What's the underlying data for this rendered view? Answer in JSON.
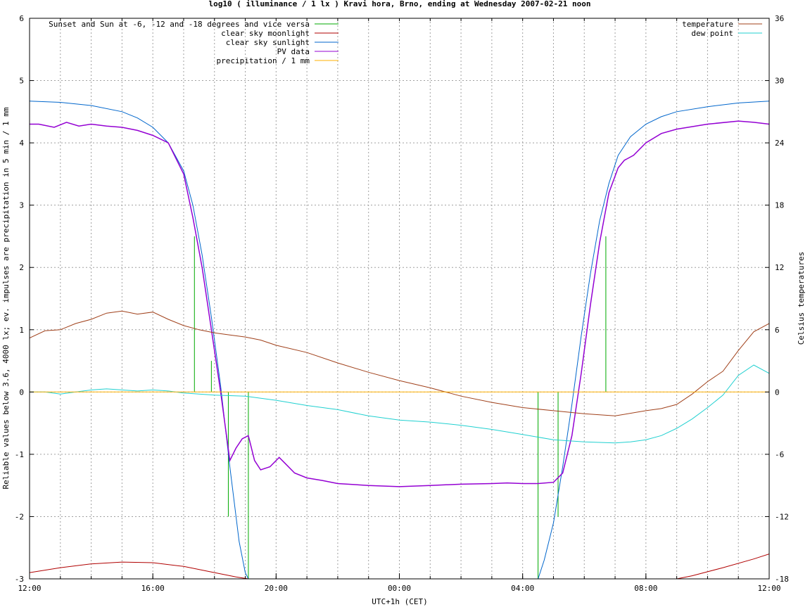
{
  "chart_data": {
    "type": "line",
    "title": "log10 ( illuminance / 1 lx ) Kravi hora, Brno, ending at Wednesday 2007-02-21 noon",
    "xlabel": "UTC+1h (CET)",
    "ylabel": "Reliable values below 3.6, 4000 lx; ev. impulses are precipitation in 5 min / 1 mm",
    "y2label": "Celsius temperatures",
    "xlim": [
      12,
      36
    ],
    "ylim": [
      -3,
      6
    ],
    "y2lim": [
      -18,
      36
    ],
    "x_ticks": [
      {
        "x": 12,
        "label": "12:00"
      },
      {
        "x": 16,
        "label": "16:00"
      },
      {
        "x": 20,
        "label": "20:00"
      },
      {
        "x": 24,
        "label": "00:00"
      },
      {
        "x": 28,
        "label": "04:00"
      },
      {
        "x": 32,
        "label": "08:00"
      },
      {
        "x": 36,
        "label": "12:00"
      }
    ],
    "y_ticks": [
      -3,
      -2,
      -1,
      0,
      1,
      2,
      3,
      4,
      5,
      6
    ],
    "y2_ticks": [
      -18,
      -12,
      -6,
      0,
      6,
      12,
      18,
      24,
      30,
      36
    ],
    "grid": true,
    "legend_left": [
      {
        "name": "Sunset and Sun at -6, -12 and -18 degrees and vice versa",
        "color": "#00aa00"
      },
      {
        "name": "clear sky moonlight",
        "color": "#b00000"
      },
      {
        "name": "clear sky sunlight",
        "color": "#0066cc"
      },
      {
        "name": "PV data",
        "color": "#9400d3"
      },
      {
        "name": "precipitation / 1 mm",
        "color": "#ffb000"
      }
    ],
    "legend_right": [
      {
        "name": "temperature",
        "color": "#a0401a"
      },
      {
        "name": "dew point",
        "color": "#20d0d0"
      }
    ],
    "sun_event_impulses": [
      {
        "x": 17.35,
        "y": 2.5
      },
      {
        "x": 17.9,
        "y": 0.5
      },
      {
        "x": 18.45,
        "y": -2.0
      },
      {
        "x": 19.1,
        "y": -3.0
      },
      {
        "x": 28.5,
        "y": -3.0
      },
      {
        "x": 29.15,
        "y": -2.0
      },
      {
        "x": 29.7,
        "y": 0.0
      },
      {
        "x": 30.7,
        "y": 2.5
      }
    ],
    "series": [
      {
        "name": "clear sky sunlight",
        "axis": "left",
        "x": [
          12,
          13,
          14,
          15,
          15.5,
          16,
          16.5,
          17,
          17.3,
          17.6,
          17.9,
          18.2,
          18.5,
          18.8,
          19.0,
          19.1,
          28.5,
          28.7,
          29.0,
          29.3,
          29.6,
          29.9,
          30.2,
          30.5,
          30.8,
          31.1,
          31.5,
          32,
          32.5,
          33,
          34,
          35,
          36
        ],
        "values": [
          4.67,
          4.65,
          4.6,
          4.5,
          4.4,
          4.25,
          4.0,
          3.55,
          3.0,
          2.2,
          1.2,
          0.1,
          -1.2,
          -2.4,
          -2.9,
          -3.0,
          -3.0,
          -2.7,
          -2.1,
          -1.2,
          -0.2,
          0.9,
          1.9,
          2.75,
          3.35,
          3.8,
          4.1,
          4.3,
          4.42,
          4.5,
          4.58,
          4.64,
          4.67
        ]
      },
      {
        "name": "clear sky moonlight",
        "axis": "left",
        "x": [
          12,
          13,
          14,
          15,
          16,
          17,
          18,
          18.7,
          19.1,
          33.0,
          33.5,
          34.5,
          35.5,
          36
        ],
        "values": [
          -2.9,
          -2.82,
          -2.76,
          -2.73,
          -2.74,
          -2.8,
          -2.9,
          -2.97,
          -3.0,
          -3.0,
          -2.95,
          -2.82,
          -2.68,
          -2.6
        ]
      },
      {
        "name": "PV data",
        "axis": "left",
        "x": [
          12,
          12.3,
          12.8,
          13.2,
          13.6,
          14,
          14.5,
          15,
          15.5,
          16,
          16.5,
          16.8,
          17,
          17.3,
          17.6,
          17.9,
          18.2,
          18.5,
          18.7,
          18.9,
          19.1,
          19.3,
          19.5,
          19.8,
          20.1,
          20.3,
          20.6,
          21,
          21.5,
          22,
          23,
          24,
          25,
          26,
          27,
          27.5,
          28,
          28.5,
          29,
          29.3,
          29.6,
          29.9,
          30.2,
          30.5,
          30.8,
          31.1,
          31.3,
          31.6,
          32,
          32.5,
          33,
          34,
          35,
          35.5,
          36
        ],
        "values": [
          4.3,
          4.3,
          4.25,
          4.33,
          4.27,
          4.3,
          4.27,
          4.25,
          4.2,
          4.12,
          4.0,
          3.7,
          3.5,
          2.8,
          2.0,
          1.0,
          0.0,
          -1.1,
          -0.9,
          -0.75,
          -0.7,
          -1.1,
          -1.25,
          -1.2,
          -1.05,
          -1.15,
          -1.3,
          -1.38,
          -1.42,
          -1.47,
          -1.5,
          -1.52,
          -1.5,
          -1.48,
          -1.47,
          -1.46,
          -1.47,
          -1.47,
          -1.45,
          -1.3,
          -0.7,
          0.3,
          1.4,
          2.4,
          3.2,
          3.6,
          3.72,
          3.8,
          4.0,
          4.15,
          4.22,
          4.3,
          4.35,
          4.33,
          4.3
        ]
      },
      {
        "name": "temperature",
        "axis": "right",
        "x": [
          12,
          12.5,
          13,
          13.5,
          14,
          14.5,
          15,
          15.5,
          16,
          16.5,
          17,
          17.5,
          18,
          18.5,
          19,
          19.5,
          20,
          21,
          22,
          23,
          24,
          25,
          26,
          27,
          28,
          29,
          30,
          31,
          32,
          32.5,
          33,
          33.5,
          34,
          34.5,
          35,
          35.5,
          36
        ],
        "values": [
          5.2,
          5.9,
          6.0,
          6.6,
          7.0,
          7.6,
          7.8,
          7.5,
          7.7,
          7.0,
          6.4,
          6.0,
          5.7,
          5.5,
          5.3,
          5.0,
          4.5,
          3.8,
          2.8,
          1.9,
          1.1,
          0.4,
          -0.4,
          -1.0,
          -1.5,
          -1.8,
          -2.1,
          -2.3,
          -1.8,
          -1.6,
          -1.2,
          -0.2,
          1.0,
          2.0,
          4.0,
          5.8,
          6.6
        ]
      },
      {
        "name": "dew point",
        "axis": "right",
        "x": [
          12,
          12.5,
          13,
          13.5,
          14,
          14.5,
          15,
          15.5,
          16,
          16.5,
          17,
          18,
          19,
          20,
          21,
          22,
          23,
          24,
          25,
          26,
          27,
          28,
          29,
          30,
          31,
          31.5,
          32,
          32.5,
          33,
          33.5,
          34,
          34.5,
          35,
          35.5,
          36
        ],
        "values": [
          0.0,
          0.0,
          -0.2,
          0.0,
          0.2,
          0.3,
          0.2,
          0.1,
          0.2,
          0.1,
          -0.1,
          -0.3,
          -0.4,
          -0.8,
          -1.3,
          -1.7,
          -2.3,
          -2.7,
          -2.9,
          -3.2,
          -3.6,
          -4.1,
          -4.6,
          -4.8,
          -4.9,
          -4.8,
          -4.6,
          -4.2,
          -3.5,
          -2.6,
          -1.5,
          -0.3,
          1.6,
          2.6,
          1.8
        ]
      },
      {
        "name": "precipitation / 1 mm",
        "axis": "left",
        "x": [
          12,
          36
        ],
        "values": [
          0,
          0
        ]
      }
    ]
  }
}
